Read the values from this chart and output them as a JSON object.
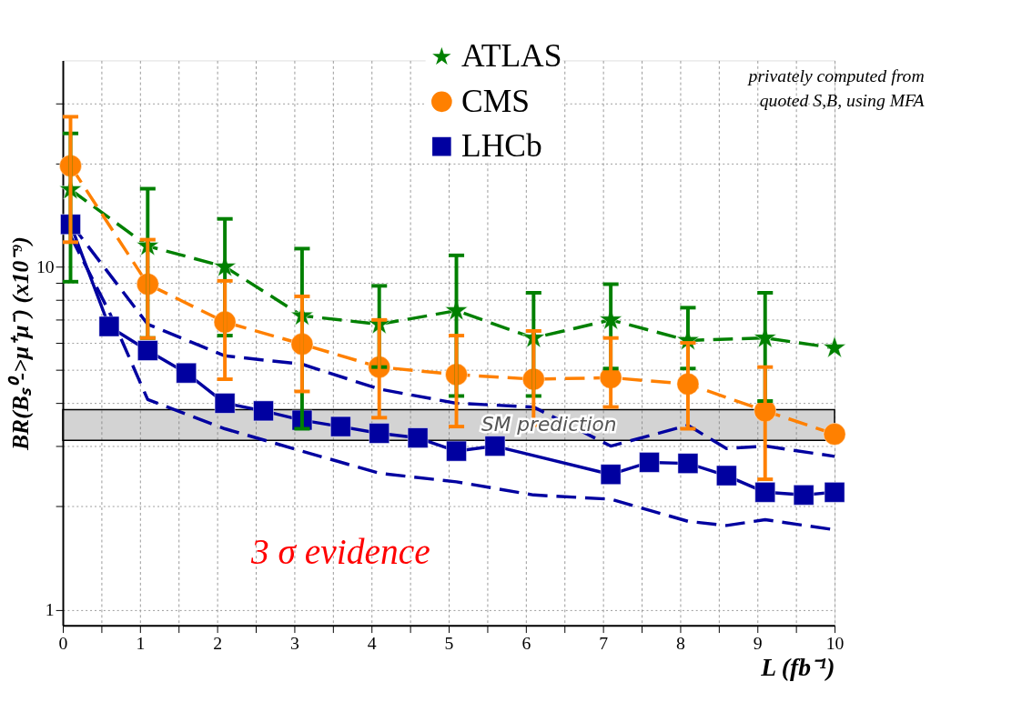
{
  "chart_data": {
    "type": "line",
    "xlabel": "L (fb⁻¹)",
    "ylabel": "BR(Bₛ⁰->μ⁺μ⁻)  (x10⁻⁹)",
    "xlim": [
      0,
      10
    ],
    "ylim": [
      0.9,
      40
    ],
    "log": "y",
    "grid": true,
    "legend": "top right",
    "xticks": [
      0,
      {
        "value": 0.5,
        "label": null
      },
      1,
      {
        "value": 1.5,
        "label": null
      },
      2,
      {
        "value": 2.5,
        "label": null
      },
      3,
      {
        "value": 3.5,
        "label": null
      },
      4,
      {
        "value": 4.5,
        "label": null
      },
      5,
      {
        "value": 5.5,
        "label": null
      },
      6,
      {
        "value": 6.5,
        "label": null
      },
      7,
      {
        "value": 7.5,
        "label": null
      },
      8,
      {
        "value": 8.5,
        "label": null
      },
      9,
      {
        "value": 9.5,
        "label": null
      },
      10
    ],
    "yticks": [
      1,
      {
        "value": 2,
        "label": null
      },
      {
        "value": 3,
        "label": null
      },
      {
        "value": 4,
        "label": null
      },
      {
        "value": 5,
        "label": null
      },
      {
        "value": 6,
        "label": null
      },
      {
        "value": 7,
        "label": null
      },
      {
        "value": 8,
        "label": null
      },
      {
        "value": 9,
        "label": null
      },
      10,
      {
        "value": 20,
        "label": null
      },
      {
        "value": 30,
        "label": null
      }
    ],
    "bands": [
      {
        "axis": "y",
        "from": 3.12,
        "to": 3.83,
        "label": "SM prediction",
        "color": "#808080"
      }
    ],
    "annotations": [
      "privately computed from\nquoted S,B, using MFA",
      "3 σ  evidence"
    ],
    "series": [
      {
        "name": "ATLAS",
        "color": "#008000",
        "marker": "star",
        "line_style": "dashed",
        "x": [
          0.1,
          1.1,
          2.1,
          3.1,
          4.1,
          5.1,
          6.1,
          7.1,
          8.1,
          9.1,
          10
        ],
        "values": [
          16.8,
          11.5,
          10.0,
          7.2,
          6.8,
          7.45,
          6.2,
          7.0,
          6.1,
          6.2,
          5.8
        ],
        "errors": [
          [
            9.05,
            24.5
          ],
          [
            6.2,
            16.9
          ],
          [
            6.3,
            13.8
          ],
          [
            3.37,
            11.3
          ],
          [
            5.1,
            8.8
          ],
          [
            4.2,
            10.8
          ],
          [
            4.2,
            8.4
          ],
          [
            5.05,
            8.9
          ],
          [
            5.05,
            7.6
          ],
          [
            4.06,
            8.4
          ],
          null
        ]
      },
      {
        "name": "CMS",
        "color": "#ff8000",
        "marker": "circle",
        "line_style": "dashed",
        "x": [
          0.1,
          1.1,
          2.1,
          3.1,
          4.1,
          5.1,
          6.1,
          7.1,
          8.1,
          9.1,
          10
        ],
        "values": [
          19.7,
          8.9,
          6.9,
          5.95,
          5.1,
          4.85,
          4.7,
          4.75,
          4.55,
          3.8,
          3.25
        ],
        "errors": [
          [
            11.8,
            27.4
          ],
          [
            6.2,
            12.0
          ],
          [
            4.7,
            9.1
          ],
          [
            4.33,
            8.2
          ],
          [
            3.63,
            7.0
          ],
          [
            3.42,
            6.3
          ],
          [
            3.45,
            6.5
          ],
          [
            3.9,
            6.2
          ],
          [
            3.37,
            6.0
          ],
          [
            2.4,
            5.1
          ],
          null
        ]
      },
      {
        "name": "LHCb",
        "color": "#0000a0",
        "marker": "square",
        "line_style": "solid",
        "x": [
          0.1,
          0.6,
          1.1,
          1.6,
          2.1,
          2.6,
          3.1,
          3.6,
          4.1,
          4.6,
          5.1,
          5.6,
          7.1,
          7.6,
          8.1,
          8.6,
          9.1,
          9.6,
          10
        ],
        "values": [
          13.3,
          6.7,
          5.7,
          4.9,
          4.0,
          3.8,
          3.57,
          3.42,
          3.27,
          3.17,
          2.9,
          3.0,
          2.48,
          2.69,
          2.67,
          2.46,
          2.2,
          2.16,
          2.2
        ]
      },
      {
        "color": "#0000a0",
        "marker": "none",
        "line_style": "dashed",
        "x": [
          0.1,
          1.1,
          2.1,
          3.1,
          4.1,
          5.1,
          6.1,
          7.1,
          8.1,
          8.6,
          9.1,
          10
        ],
        "values": [
          13.4,
          6.8,
          5.5,
          5.2,
          4.4,
          4.0,
          3.9,
          3.0,
          3.45,
          2.95,
          3.0,
          2.8
        ]
      },
      {
        "color": "#0000a0",
        "marker": "none",
        "line_style": "dashed",
        "x": [
          0.1,
          0.6,
          1.1,
          2.1,
          3.1,
          4.1,
          5.1,
          6.1,
          7.1,
          8.1,
          8.6,
          9.1,
          10
        ],
        "values": [
          12.3,
          7.4,
          4.1,
          3.37,
          2.9,
          2.5,
          2.36,
          2.16,
          2.1,
          1.81,
          1.76,
          1.83,
          1.71
        ]
      }
    ]
  }
}
